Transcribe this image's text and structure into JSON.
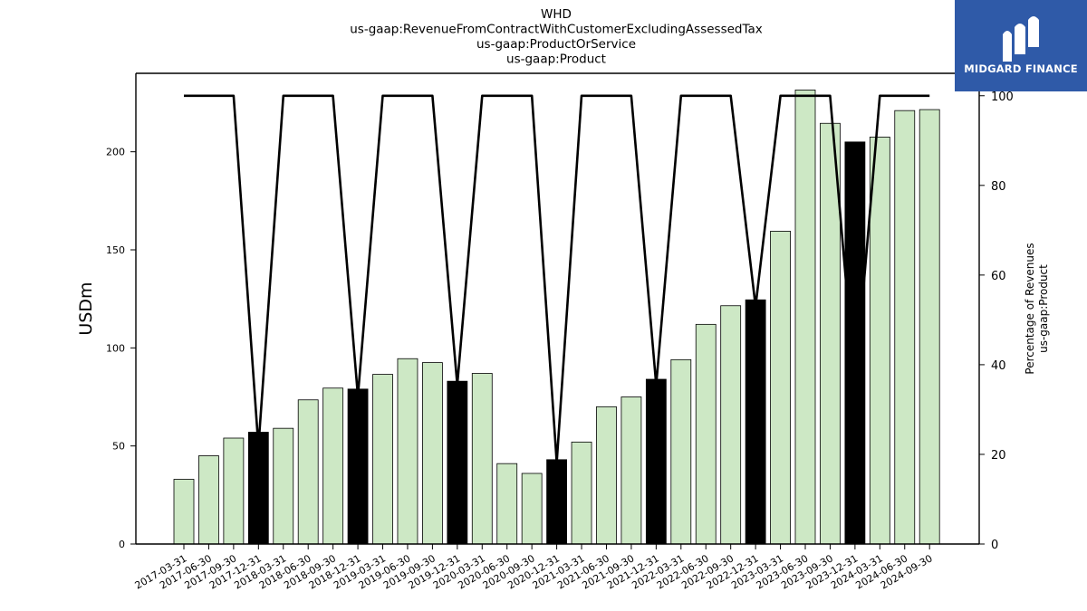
{
  "chart_data": {
    "type": "bar",
    "title_lines": [
      "WHD",
      "us-gaap:RevenueFromContractWithCustomerExcludingAssessedTax",
      "us-gaap:ProductOrService",
      "us-gaap:Product"
    ],
    "ylabel": "USDm",
    "ylabel_right_lines": [
      "Percentage of Revenues",
      "us-gaap:Product"
    ],
    "categories": [
      "2017-03-31",
      "2017-06-30",
      "2017-09-30",
      "2017-12-31",
      "2018-03-31",
      "2018-06-30",
      "2018-09-30",
      "2018-12-31",
      "2019-03-31",
      "2019-06-30",
      "2019-09-30",
      "2019-12-31",
      "2020-03-31",
      "2020-06-30",
      "2020-09-30",
      "2020-12-31",
      "2021-03-31",
      "2021-06-30",
      "2021-09-30",
      "2021-12-31",
      "2022-03-31",
      "2022-06-30",
      "2022-09-30",
      "2022-12-31",
      "2023-03-31",
      "2023-06-30",
      "2023-09-30",
      "2023-12-31",
      "2024-03-31",
      "2024-06-30",
      "2024-09-30"
    ],
    "series": [
      {
        "values": [
          33,
          45,
          54,
          57,
          59,
          73.5,
          79.5,
          79,
          86.5,
          94.5,
          92.5,
          83,
          87,
          41,
          36,
          43,
          52,
          70,
          75,
          84,
          94,
          112,
          121.5,
          124.5,
          159.5,
          231.5,
          214.5,
          205,
          207.5,
          221,
          221.5
        ],
        "highlight": [
          false,
          false,
          false,
          true,
          false,
          false,
          false,
          true,
          false,
          false,
          false,
          true,
          false,
          false,
          false,
          true,
          false,
          false,
          false,
          true,
          false,
          false,
          false,
          true,
          false,
          false,
          false,
          true,
          false,
          false,
          false
        ]
      },
      {
        "axis": "right",
        "values": [
          100,
          100,
          100,
          21.7,
          100,
          100,
          100,
          33,
          100,
          100,
          100,
          35.5,
          100,
          100,
          100,
          18.2,
          100,
          100,
          100,
          35.5,
          100,
          100,
          100,
          53,
          100,
          100,
          100,
          35,
          100,
          100,
          100
        ]
      }
    ],
    "ylim": [
      0,
      240
    ],
    "yticks": [
      0,
      50,
      100,
      150,
      200
    ],
    "ylim_right": [
      0,
      105
    ],
    "yticks_right": [
      0,
      20,
      40,
      60,
      80,
      100
    ],
    "colors": {
      "bar": "#cde8c5",
      "bar_highlight": "#000000",
      "line": "#000000"
    },
    "grid": false
  },
  "logo": {
    "text": "MIDGARD FINANCE",
    "color": "#2f5aa8"
  }
}
